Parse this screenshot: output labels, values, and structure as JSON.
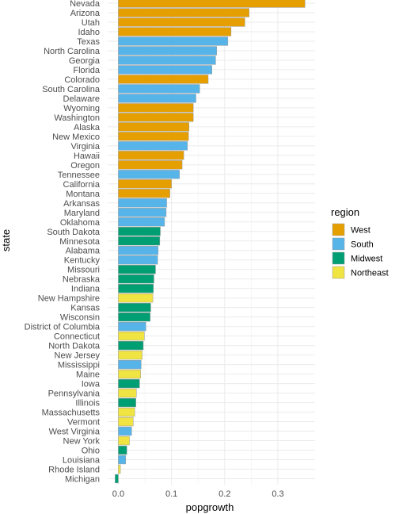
{
  "chart_data": {
    "type": "bar",
    "orientation": "horizontal",
    "xlabel": "popgrowth",
    "ylabel": "state",
    "xlim": [
      -0.02,
      0.37
    ],
    "xticks": [
      0.0,
      0.1,
      0.2,
      0.3
    ],
    "xtick_labels": [
      "0.0",
      "0.1",
      "0.2",
      "0.3"
    ],
    "grid": true,
    "legend": {
      "title": "region",
      "position": "right",
      "entries": [
        {
          "name": "West",
          "color": "#E69F00"
        },
        {
          "name": "South",
          "color": "#56B4E9"
        },
        {
          "name": "Midwest",
          "color": "#009E73"
        },
        {
          "name": "Northeast",
          "color": "#F0E442"
        }
      ]
    },
    "bars": [
      {
        "state": "Nevada",
        "value": 0.351,
        "region": "West"
      },
      {
        "state": "Arizona",
        "value": 0.246,
        "region": "West"
      },
      {
        "state": "Utah",
        "value": 0.238,
        "region": "West"
      },
      {
        "state": "Idaho",
        "value": 0.212,
        "region": "West"
      },
      {
        "state": "Texas",
        "value": 0.206,
        "region": "South"
      },
      {
        "state": "North Carolina",
        "value": 0.185,
        "region": "South"
      },
      {
        "state": "Georgia",
        "value": 0.183,
        "region": "South"
      },
      {
        "state": "Florida",
        "value": 0.176,
        "region": "South"
      },
      {
        "state": "Colorado",
        "value": 0.169,
        "region": "West"
      },
      {
        "state": "South Carolina",
        "value": 0.153,
        "region": "South"
      },
      {
        "state": "Delaware",
        "value": 0.146,
        "region": "South"
      },
      {
        "state": "Wyoming",
        "value": 0.141,
        "region": "West"
      },
      {
        "state": "Washington",
        "value": 0.141,
        "region": "West"
      },
      {
        "state": "Alaska",
        "value": 0.133,
        "region": "West"
      },
      {
        "state": "New Mexico",
        "value": 0.132,
        "region": "West"
      },
      {
        "state": "Virginia",
        "value": 0.13,
        "region": "South"
      },
      {
        "state": "Hawaii",
        "value": 0.123,
        "region": "West"
      },
      {
        "state": "Oregon",
        "value": 0.12,
        "region": "West"
      },
      {
        "state": "Tennessee",
        "value": 0.115,
        "region": "South"
      },
      {
        "state": "California",
        "value": 0.1,
        "region": "West"
      },
      {
        "state": "Montana",
        "value": 0.097,
        "region": "West"
      },
      {
        "state": "Arkansas",
        "value": 0.091,
        "region": "South"
      },
      {
        "state": "Maryland",
        "value": 0.09,
        "region": "South"
      },
      {
        "state": "Oklahoma",
        "value": 0.087,
        "region": "South"
      },
      {
        "state": "South Dakota",
        "value": 0.079,
        "region": "Midwest"
      },
      {
        "state": "Minnesota",
        "value": 0.078,
        "region": "Midwest"
      },
      {
        "state": "Alabama",
        "value": 0.075,
        "region": "South"
      },
      {
        "state": "Kentucky",
        "value": 0.074,
        "region": "South"
      },
      {
        "state": "Missouri",
        "value": 0.07,
        "region": "Midwest"
      },
      {
        "state": "Nebraska",
        "value": 0.067,
        "region": "Midwest"
      },
      {
        "state": "Indiana",
        "value": 0.066,
        "region": "Midwest"
      },
      {
        "state": "New Hampshire",
        "value": 0.065,
        "region": "Northeast"
      },
      {
        "state": "Kansas",
        "value": 0.061,
        "region": "Midwest"
      },
      {
        "state": "Wisconsin",
        "value": 0.06,
        "region": "Midwest"
      },
      {
        "state": "District of Columbia",
        "value": 0.052,
        "region": "South"
      },
      {
        "state": "Connecticut",
        "value": 0.049,
        "region": "Northeast"
      },
      {
        "state": "North Dakota",
        "value": 0.047,
        "region": "Midwest"
      },
      {
        "state": "New Jersey",
        "value": 0.045,
        "region": "Northeast"
      },
      {
        "state": "Mississippi",
        "value": 0.043,
        "region": "South"
      },
      {
        "state": "Maine",
        "value": 0.042,
        "region": "Northeast"
      },
      {
        "state": "Iowa",
        "value": 0.04,
        "region": "Midwest"
      },
      {
        "state": "Pennsylvania",
        "value": 0.034,
        "region": "Northeast"
      },
      {
        "state": "Illinois",
        "value": 0.033,
        "region": "Midwest"
      },
      {
        "state": "Massachusetts",
        "value": 0.031,
        "region": "Northeast"
      },
      {
        "state": "Vermont",
        "value": 0.028,
        "region": "Northeast"
      },
      {
        "state": "West Virginia",
        "value": 0.025,
        "region": "South"
      },
      {
        "state": "New York",
        "value": 0.021,
        "region": "Northeast"
      },
      {
        "state": "Ohio",
        "value": 0.016,
        "region": "Midwest"
      },
      {
        "state": "Louisiana",
        "value": 0.014,
        "region": "South"
      },
      {
        "state": "Rhode Island",
        "value": 0.004,
        "region": "Northeast"
      },
      {
        "state": "Michigan",
        "value": -0.006,
        "region": "Midwest"
      }
    ]
  }
}
